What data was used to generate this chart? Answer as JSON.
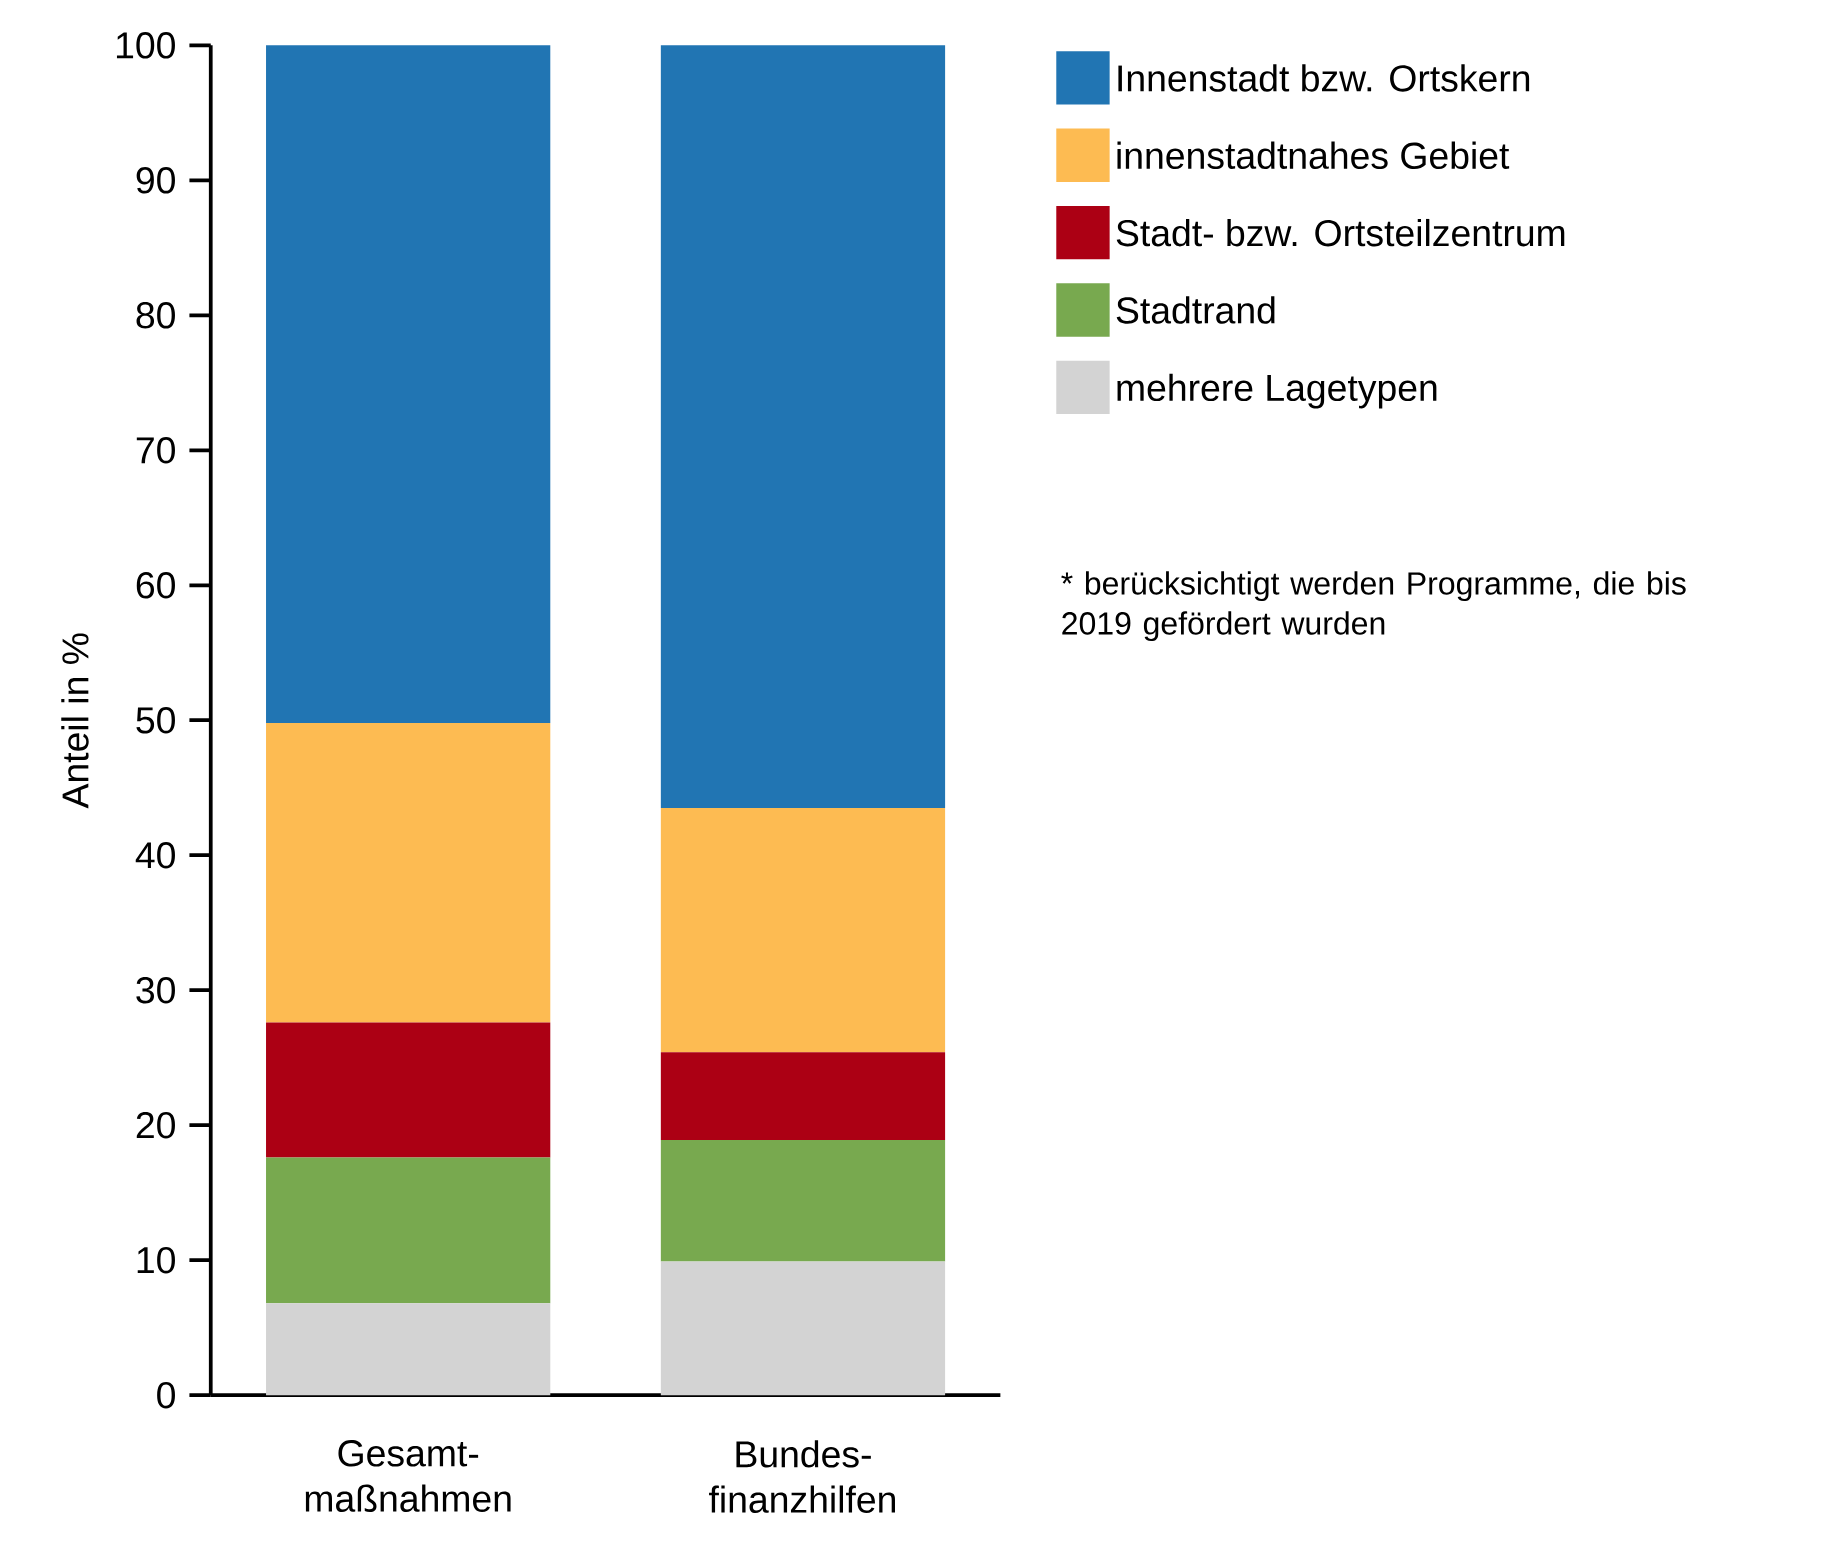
{
  "chart_data": {
    "type": "bar",
    "stacked": true,
    "ylabel": "Anteil in %",
    "categories": [
      "Gesamt-maßnahmen",
      "Bundes-finanzhilfen"
    ],
    "series": [
      {
        "name": "mehrere Lagetypen",
        "color": "#d3d3d3",
        "values": [
          6.8,
          9.9
        ]
      },
      {
        "name": "Stadtrand",
        "color": "#78a94f",
        "values": [
          10.8,
          9.0
        ]
      },
      {
        "name": "Stadt- bzw. Ortsteilzentrum",
        "color": "#ac0014",
        "values": [
          10.0,
          6.5
        ]
      },
      {
        "name": "innenstadtnahes Gebiet",
        "color": "#fdbb52",
        "values": [
          22.2,
          18.1
        ]
      },
      {
        "name": "Innenstadt bzw. Ortskern",
        "color": "#2175b3",
        "values": [
          50.2,
          56.5
        ]
      }
    ],
    "ylim": [
      0,
      100
    ],
    "yticks": [
      0,
      10,
      20,
      30,
      40,
      50,
      60,
      70,
      80,
      90,
      100
    ],
    "legend": "top right",
    "grid": false,
    "annotations": [
      "* berücksichtigt werden Programme, die bis 2019 gefördert wurden"
    ]
  }
}
